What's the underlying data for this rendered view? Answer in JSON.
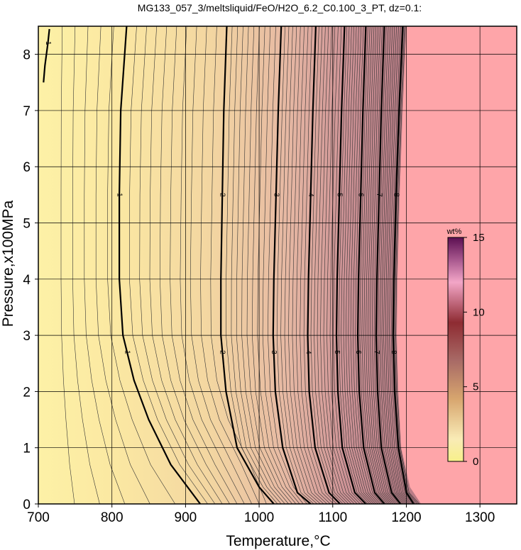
{
  "chart_data": {
    "type": "contour",
    "title": "MG133_057_3/meltsliquid/FeO/H2O_6.2_C0.100_3_PT, dz=0.1:",
    "xlabel": "Temperature,°C",
    "ylabel": "Pressure,x100MPa",
    "xlim": [
      700,
      1350
    ],
    "ylim": [
      0,
      8.5
    ],
    "xticks": [
      "700",
      "800",
      "900",
      "1000",
      "1100",
      "1200",
      "1300"
    ],
    "yticks": [
      "0",
      "1",
      "2",
      "3",
      "4",
      "5",
      "6",
      "7",
      "8"
    ],
    "grid": true,
    "contour_interval": 0.1,
    "colorbar": {
      "unit": "wt%",
      "range": [
        0,
        15
      ],
      "ticks": [
        "0",
        "5",
        "10",
        "15"
      ],
      "position": "right"
    },
    "labeled_contours": [
      {
        "level": "1",
        "points": [
          [
            820,
            8.5
          ],
          [
            812,
            7.0
          ],
          [
            810,
            5.5
          ],
          [
            810,
            4.0
          ],
          [
            815,
            3.0
          ],
          [
            830,
            2.2
          ],
          [
            850,
            1.5
          ],
          [
            880,
            0.7
          ],
          [
            920,
            0
          ]
        ]
      },
      {
        "level": "2",
        "points": [
          [
            956,
            8.5
          ],
          [
            952,
            7.0
          ],
          [
            950,
            5.5
          ],
          [
            948,
            4.0
          ],
          [
            948,
            3.0
          ],
          [
            955,
            2.0
          ],
          [
            970,
            1.0
          ],
          [
            1000,
            0.3
          ],
          [
            1020,
            0
          ]
        ]
      },
      {
        "level": "3",
        "points": [
          [
            1030,
            8.5
          ],
          [
            1026,
            7.0
          ],
          [
            1023,
            5.5
          ],
          [
            1020,
            4.0
          ],
          [
            1019,
            3.0
          ],
          [
            1022,
            2.0
          ],
          [
            1032,
            1.0
          ],
          [
            1052,
            0.2
          ],
          [
            1070,
            0
          ]
        ]
      },
      {
        "level": "4",
        "points": [
          [
            1077,
            8.5
          ],
          [
            1073,
            7.0
          ],
          [
            1070,
            5.5
          ],
          [
            1067,
            4.0
          ],
          [
            1066,
            3.0
          ],
          [
            1068,
            2.0
          ],
          [
            1076,
            1.0
          ],
          [
            1095,
            0.2
          ],
          [
            1110,
            0
          ]
        ]
      },
      {
        "level": "5",
        "points": [
          [
            1116,
            8.5
          ],
          [
            1112,
            7.0
          ],
          [
            1109,
            5.5
          ],
          [
            1106,
            4.0
          ],
          [
            1105,
            3.0
          ],
          [
            1107,
            2.0
          ],
          [
            1113,
            1.0
          ],
          [
            1130,
            0.2
          ],
          [
            1145,
            0
          ]
        ]
      },
      {
        "level": "6",
        "points": [
          [
            1145,
            8.5
          ],
          [
            1141,
            7.0
          ],
          [
            1138,
            5.5
          ],
          [
            1135,
            4.0
          ],
          [
            1134,
            3.0
          ],
          [
            1136,
            2.0
          ],
          [
            1142,
            1.0
          ],
          [
            1157,
            0.2
          ],
          [
            1170,
            0
          ]
        ]
      },
      {
        "level": "7",
        "points": [
          [
            1170,
            8.5
          ],
          [
            1166,
            7.0
          ],
          [
            1163,
            5.5
          ],
          [
            1160,
            4.0
          ],
          [
            1159,
            3.0
          ],
          [
            1161,
            2.0
          ],
          [
            1166,
            1.0
          ],
          [
            1180,
            0.2
          ],
          [
            1192,
            0
          ]
        ]
      },
      {
        "level": "8",
        "points": [
          [
            1195,
            8.5
          ],
          [
            1190,
            7.0
          ],
          [
            1186,
            5.5
          ],
          [
            1183,
            4.0
          ],
          [
            1182,
            3.0
          ],
          [
            1184,
            2.0
          ],
          [
            1189,
            1.0
          ],
          [
            1200,
            0.2
          ],
          [
            1210,
            0
          ]
        ]
      }
    ],
    "boundary": {
      "points": [
        [
          1200,
          8.5
        ],
        [
          1195,
          7.0
        ],
        [
          1191,
          5.5
        ],
        [
          1188,
          4.0
        ],
        [
          1187,
          3.0
        ],
        [
          1189,
          2.0
        ],
        [
          1193,
          1.0
        ],
        [
          1205,
          0.3
        ],
        [
          1220,
          0
        ]
      ]
    },
    "left_features": [
      {
        "label": "1",
        "points": [
          [
            715,
            8.45
          ],
          [
            713,
            8.2
          ],
          [
            711,
            8.0
          ],
          [
            709,
            7.8
          ],
          [
            707,
            7.5
          ]
        ]
      }
    ]
  }
}
